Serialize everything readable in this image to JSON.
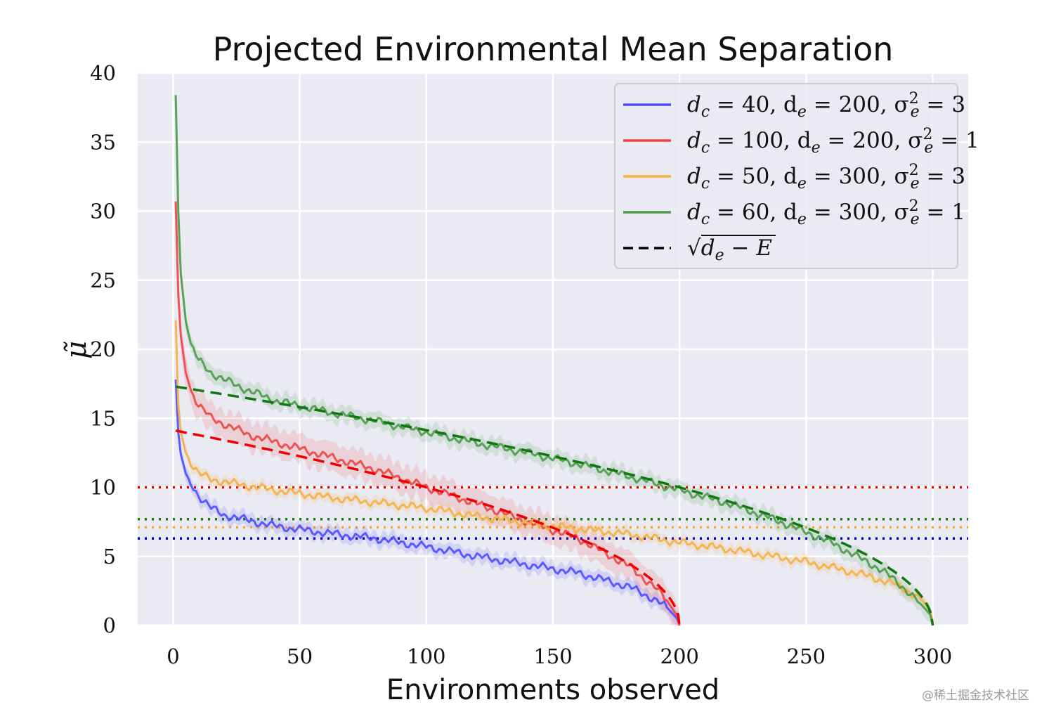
{
  "chart_data": {
    "type": "line",
    "title": "Projected Environmental Mean Separation",
    "xlabel": "Environments observed",
    "ylabel": "μ̃",
    "xlim": [
      -14,
      314
    ],
    "ylim": [
      0,
      40
    ],
    "xticks": [
      0,
      50,
      100,
      150,
      200,
      250,
      300
    ],
    "yticks": [
      0,
      5,
      10,
      15,
      20,
      25,
      30,
      35,
      40
    ],
    "grid": true,
    "legend_position": "top-right",
    "series": [
      {
        "name": "dc = 40, de = 200, σe² = 3",
        "color": "#4d4dff",
        "x": [
          1,
          2,
          3,
          5,
          7,
          10,
          15,
          20,
          30,
          40,
          60,
          80,
          100,
          120,
          140,
          160,
          180,
          190,
          195,
          199,
          200
        ],
        "y": [
          17.8,
          14.0,
          12.4,
          11.0,
          10.3,
          9.4,
          8.5,
          8.0,
          7.6,
          7.2,
          6.7,
          6.3,
          5.7,
          5.0,
          4.4,
          3.8,
          2.8,
          1.9,
          1.3,
          0.5,
          0.0
        ],
        "band": 0.6
      },
      {
        "name": "dc = 100, de = 200, σe² = 1",
        "color": "#ee4444",
        "x": [
          1,
          2,
          3,
          5,
          7,
          10,
          15,
          20,
          30,
          40,
          60,
          80,
          100,
          120,
          140,
          160,
          180,
          190,
          195,
          199,
          200
        ],
        "y": [
          30.7,
          24.0,
          21.0,
          18.3,
          17.0,
          16.0,
          15.0,
          14.6,
          13.8,
          13.3,
          12.3,
          11.3,
          10.0,
          8.8,
          7.5,
          6.3,
          4.3,
          2.8,
          1.8,
          0.7,
          0.0
        ],
        "band": 1.2
      },
      {
        "name": "dc = 50, de = 300, σe² = 3",
        "color": "#f5b041",
        "x": [
          1,
          2,
          3,
          5,
          7,
          10,
          15,
          20,
          30,
          40,
          60,
          80,
          100,
          120,
          150,
          180,
          200,
          220,
          250,
          270,
          285,
          295,
          299,
          300
        ],
        "y": [
          22.1,
          16.0,
          14.0,
          12.5,
          11.8,
          11.0,
          10.6,
          10.4,
          10.1,
          9.8,
          9.3,
          8.9,
          8.5,
          7.9,
          7.2,
          6.6,
          6.0,
          5.5,
          4.6,
          3.8,
          3.0,
          2.0,
          1.1,
          0.2
        ],
        "band": 0.5
      },
      {
        "name": "dc = 60, de = 300, σe² = 1",
        "color": "#4a9a4a",
        "x": [
          1,
          2,
          3,
          5,
          7,
          10,
          15,
          20,
          30,
          40,
          60,
          80,
          100,
          120,
          140,
          160,
          180,
          200,
          220,
          240,
          260,
          280,
          290,
          295,
          299,
          300
        ],
        "y": [
          38.4,
          30.0,
          25.5,
          22.0,
          20.3,
          19.2,
          18.3,
          17.8,
          17.0,
          16.3,
          15.5,
          14.8,
          14.0,
          13.2,
          12.5,
          11.7,
          10.8,
          9.8,
          8.8,
          7.5,
          6.0,
          4.0,
          2.5,
          1.6,
          0.8,
          0.0
        ],
        "band": 0.7
      }
    ],
    "reference_lines": [
      {
        "name": "√(de − E)",
        "style": "dashed",
        "curves": [
          {
            "color": "#ee0000",
            "de": 200,
            "x_range": [
              1,
              200
            ]
          },
          {
            "color": "#117711",
            "de": 300,
            "x_range": [
              1,
              300
            ]
          }
        ]
      }
    ],
    "horizontal_lines": [
      {
        "y": 10.0,
        "color": "#ee0000",
        "style": "dotted"
      },
      {
        "y": 7.7,
        "color": "#117711",
        "style": "dotted"
      },
      {
        "y": 7.1,
        "color": "#f5a623",
        "style": "dotted"
      },
      {
        "y": 6.3,
        "color": "#0000cc",
        "style": "dotted"
      }
    ],
    "legend": [
      {
        "label": "dc = 40, de = 200, σe² = 3",
        "color": "#4d4dff",
        "style": "solid"
      },
      {
        "label": "dc = 100, de = 200, σe² = 1",
        "color": "#ee4444",
        "style": "solid"
      },
      {
        "label": "dc = 50, de = 300, σe² = 3",
        "color": "#f5b041",
        "style": "solid"
      },
      {
        "label": "dc = 60, de = 300, σe² = 1",
        "color": "#4a9a4a",
        "style": "solid"
      },
      {
        "label": "√(de − E)",
        "color": "#000000",
        "style": "dashed"
      }
    ]
  },
  "watermark": "@稀土掘金技术社区"
}
